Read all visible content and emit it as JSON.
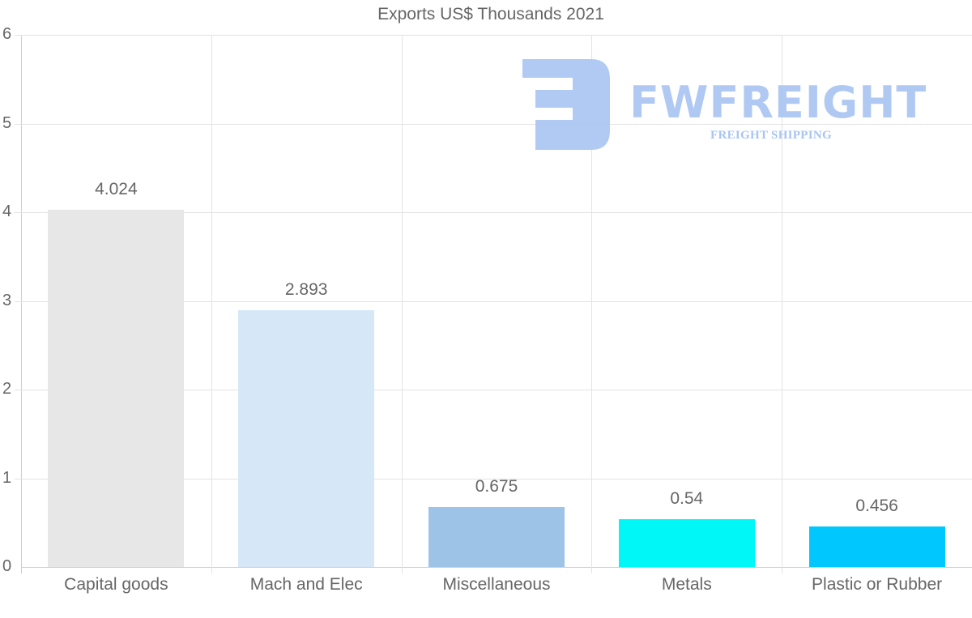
{
  "chart_data": {
    "type": "bar",
    "title": "Exports US$ Thousands 2021",
    "categories": [
      "Capital goods",
      "Mach and Elec",
      "Miscellaneous",
      "Metals",
      "Plastic or Rubber"
    ],
    "values": [
      4.024,
      2.893,
      0.675,
      0.54,
      0.456
    ],
    "value_labels": [
      "4.024",
      "2.893",
      "0.675",
      "0.54",
      "0.456"
    ],
    "colors": [
      "#e7e7e7",
      "#d6e7f8",
      "#9dc3e6",
      "#00f7f7",
      "#00c8ff"
    ],
    "xlabel": "",
    "ylabel": "",
    "ylim": [
      0,
      6
    ],
    "yticks": [
      "0",
      "1",
      "2",
      "3",
      "4",
      "5",
      "6"
    ],
    "grid": true,
    "legend": null,
    "data_labels": "above-bar"
  },
  "watermark": {
    "brand": "FWFREIGHT",
    "tagline": "FREIGHT SHIPPING",
    "color": "#a8c4f2"
  }
}
